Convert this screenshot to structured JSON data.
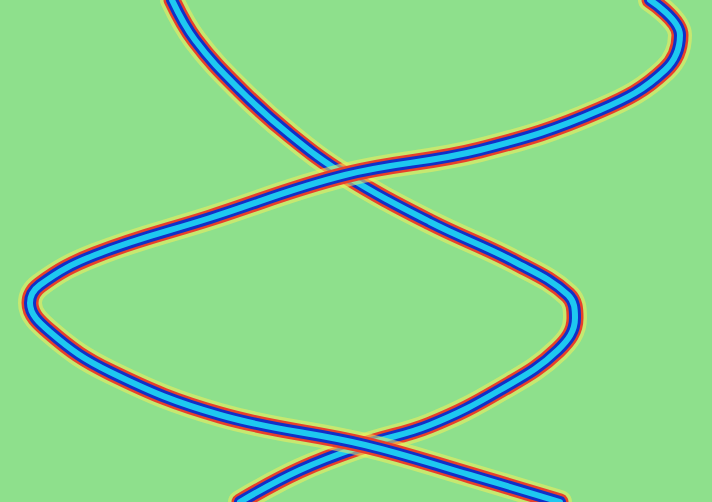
{
  "chart_data": {
    "type": "line",
    "xlim": [
      0,
      712
    ],
    "ylim": [
      0,
      502
    ],
    "tick_labels": false,
    "grid": false,
    "series": [
      {
        "color": "#1ec8f0",
        "points": [
          [
            172,
            0
          ],
          [
            195,
            40
          ],
          [
            240,
            90
          ],
          [
            290,
            135
          ],
          [
            345,
            175
          ],
          [
            430,
            222
          ],
          [
            515,
            262
          ],
          [
            568,
            295
          ],
          [
            575,
            318
          ],
          [
            558,
            350
          ],
          [
            500,
            390
          ],
          [
            430,
            425
          ],
          [
            365,
            445
          ],
          [
            300,
            470
          ],
          [
            240,
            502
          ]
        ]
      },
      {
        "color": "#1ec8f0",
        "points": [
          [
            650,
            0
          ],
          [
            680,
            35
          ],
          [
            665,
            70
          ],
          [
            600,
            110
          ],
          [
            480,
            150
          ],
          [
            345,
            175
          ],
          [
            210,
            218
          ],
          [
            95,
            255
          ],
          [
            40,
            285
          ],
          [
            30,
            303
          ],
          [
            50,
            332
          ],
          [
            110,
            372
          ],
          [
            220,
            415
          ],
          [
            365,
            445
          ],
          [
            470,
            475
          ],
          [
            560,
            502
          ]
        ]
      }
    ]
  }
}
